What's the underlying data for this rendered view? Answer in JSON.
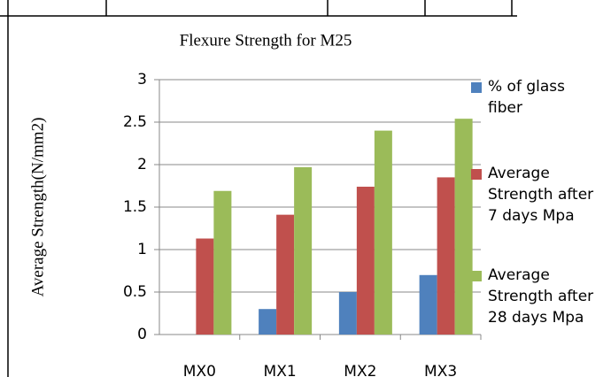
{
  "chart_data": {
    "type": "bar",
    "title": "Flexure Strength for M25",
    "y_label": "Average Strength(N/mm2)",
    "categories": [
      "MX0",
      "MX1",
      "MX2",
      "MX3"
    ],
    "series": [
      {
        "name": "% of glass fiber",
        "color": "#4f81bd",
        "values": [
          0,
          0.3,
          0.5,
          0.7
        ]
      },
      {
        "name": "Average Strength after 7 days Mpa",
        "color": "#c0504d",
        "values": [
          1.13,
          1.41,
          1.74,
          1.85
        ]
      },
      {
        "name": "Average Strength after  28 days Mpa",
        "color": "#9bbb59",
        "values": [
          1.69,
          1.97,
          2.4,
          2.54
        ]
      }
    ],
    "ylim": [
      0,
      3
    ],
    "yticks": [
      0,
      0.5,
      1,
      1.5,
      2,
      2.5,
      3
    ],
    "grid": true,
    "legend": "right"
  }
}
